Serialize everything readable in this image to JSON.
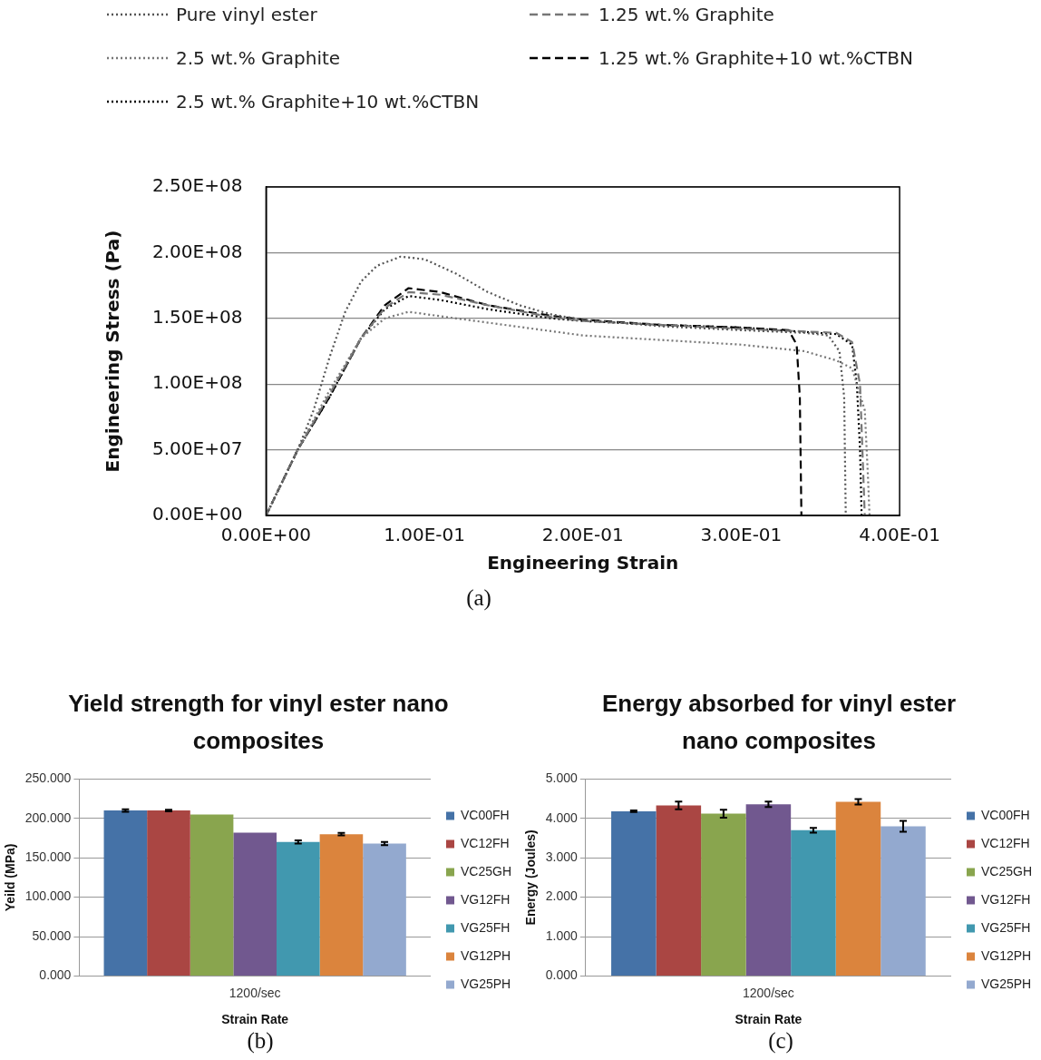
{
  "chart_data": [
    {
      "type": "line",
      "xlabel": "Engineering Strain",
      "ylabel": "Engineering Stress (Pa)",
      "annotations": [
        "(a)"
      ],
      "legend": "top",
      "grid": "y",
      "xlim": [
        0,
        0.4
      ],
      "xticks": [
        {
          "value": 0,
          "label": "0.00E+00"
        },
        {
          "value": 0.1,
          "label": "1.00E-01"
        },
        {
          "value": 0.2,
          "label": "2.00E-01"
        },
        {
          "value": 0.3,
          "label": "3.00E-01"
        },
        {
          "value": 0.4,
          "label": "4.00E-01"
        }
      ],
      "ylim": [
        0,
        250000000
      ],
      "yticks": [
        {
          "value": 0,
          "label": "0.00E+00"
        },
        {
          "value": 50000000,
          "label": "5.00E+07"
        },
        {
          "value": 100000000,
          "label": "1.00E+08"
        },
        {
          "value": 150000000,
          "label": "1.50E+08"
        },
        {
          "value": 200000000,
          "label": "2.00E+08"
        },
        {
          "value": 250000000,
          "label": "2.50E+08"
        }
      ],
      "series": [
        {
          "name": "Pure vinyl ester",
          "color": "#555555",
          "line_style": "dotted",
          "x": [
            0,
            0.01,
            0.02,
            0.03,
            0.04,
            0.05,
            0.06,
            0.07,
            0.085,
            0.1,
            0.12,
            0.14,
            0.16,
            0.18,
            0.2,
            0.25,
            0.3,
            0.34,
            0.355,
            0.362,
            0.365,
            0.366
          ],
          "values": [
            0,
            25000000,
            50000000,
            80000000,
            120000000,
            155000000,
            178000000,
            190000000,
            197000000,
            195000000,
            184000000,
            170000000,
            160000000,
            153000000,
            149000000,
            144000000,
            141000000,
            139000000,
            137000000,
            125000000,
            90000000,
            0
          ]
        },
        {
          "name": "1.25 wt.% Graphite",
          "color": "#777777",
          "line_style": "dashed",
          "x": [
            0,
            0.02,
            0.04,
            0.06,
            0.075,
            0.09,
            0.11,
            0.14,
            0.18,
            0.2,
            0.25,
            0.3,
            0.36,
            0.37,
            0.375,
            0.378
          ],
          "values": [
            0,
            50000000,
            92000000,
            135000000,
            158000000,
            170000000,
            168000000,
            160000000,
            151000000,
            148000000,
            145000000,
            142000000,
            139000000,
            132000000,
            100000000,
            0
          ]
        },
        {
          "name": "2.5 wt.% Graphite",
          "color": "#777777",
          "line_style": "dotted",
          "x": [
            0,
            0.02,
            0.04,
            0.06,
            0.075,
            0.09,
            0.12,
            0.2,
            0.3,
            0.34,
            0.36,
            0.37,
            0.378,
            0.38,
            0.381
          ],
          "values": [
            0,
            50000000,
            95000000,
            135000000,
            150000000,
            155000000,
            150000000,
            137000000,
            130000000,
            125000000,
            118000000,
            112000000,
            80000000,
            30000000,
            0
          ]
        },
        {
          "name": "1.25 wt.% Graphite+10 wt.%CTBN",
          "color": "#000000",
          "line_style": "dashed",
          "x": [
            0,
            0.02,
            0.04,
            0.06,
            0.075,
            0.09,
            0.11,
            0.14,
            0.18,
            0.2,
            0.25,
            0.3,
            0.33,
            0.335,
            0.337,
            0.338
          ],
          "values": [
            0,
            50000000,
            90000000,
            135000000,
            160000000,
            173000000,
            170000000,
            160000000,
            152000000,
            149000000,
            145000000,
            143000000,
            141000000,
            130000000,
            90000000,
            0
          ]
        },
        {
          "name": "2.5 wt.% Graphite+10 wt.%CTBN",
          "color": "#000000",
          "line_style": "dotted",
          "x": [
            0,
            0.02,
            0.04,
            0.06,
            0.075,
            0.09,
            0.11,
            0.14,
            0.18,
            0.2,
            0.25,
            0.3,
            0.36,
            0.37,
            0.373,
            0.375,
            0.376
          ],
          "values": [
            0,
            50000000,
            90000000,
            135000000,
            157000000,
            167000000,
            164000000,
            157000000,
            150000000,
            148000000,
            145000000,
            143000000,
            138000000,
            130000000,
            100000000,
            50000000,
            0
          ]
        }
      ]
    },
    {
      "type": "bar",
      "title": "Yield strength for vinyl ester nano composites",
      "xlabel": "Strain Rate",
      "ylabel": "Yeild (MPa)",
      "annotations": [
        "(b)"
      ],
      "legend": "right",
      "grid": "y",
      "categories": [
        "1200/sec"
      ],
      "ylim": [
        0,
        250
      ],
      "yticks": [
        {
          "value": 0,
          "label": "0.000"
        },
        {
          "value": 50,
          "label": "50.000"
        },
        {
          "value": 100,
          "label": "100.000"
        },
        {
          "value": 150,
          "label": "150.000"
        },
        {
          "value": 200,
          "label": "200.000"
        },
        {
          "value": 250,
          "label": "250.000"
        }
      ],
      "series": [
        {
          "name": "VC00FH",
          "color": "#4572a7",
          "values": [
            210
          ],
          "errors": [
            1.5
          ]
        },
        {
          "name": "VC12FH",
          "color": "#aa4643",
          "values": [
            210
          ],
          "errors": [
            1
          ]
        },
        {
          "name": "VC25GH",
          "color": "#89a54e",
          "values": [
            205
          ],
          "errors": [
            null
          ]
        },
        {
          "name": "VG12FH",
          "color": "#71588f",
          "values": [
            182
          ],
          "errors": [
            null
          ]
        },
        {
          "name": "VG25FH",
          "color": "#4198af",
          "values": [
            170
          ],
          "errors": [
            2
          ]
        },
        {
          "name": "VG12PH",
          "color": "#db843d",
          "values": [
            180
          ],
          "errors": [
            1.5
          ]
        },
        {
          "name": "VG25PH",
          "color": "#93a9cf",
          "values": [
            168
          ],
          "errors": [
            2
          ]
        }
      ]
    },
    {
      "type": "bar",
      "title": "Energy absorbed for vinyl ester nano composites",
      "xlabel": "Strain Rate",
      "ylabel": "Energy (Joules)",
      "annotations": [
        "(c)"
      ],
      "legend": "right",
      "grid": "y",
      "categories": [
        "1200/sec"
      ],
      "ylim": [
        0,
        5
      ],
      "yticks": [
        {
          "value": 0,
          "label": "0.000"
        },
        {
          "value": 1,
          "label": "1.000"
        },
        {
          "value": 2,
          "label": "2.000"
        },
        {
          "value": 3,
          "label": "3.000"
        },
        {
          "value": 4,
          "label": "4.000"
        },
        {
          "value": 5,
          "label": "5.000"
        }
      ],
      "series": [
        {
          "name": "VC00FH",
          "color": "#4572a7",
          "values": [
            4.18
          ],
          "errors": [
            0.02
          ]
        },
        {
          "name": "VC12FH",
          "color": "#aa4643",
          "values": [
            4.33
          ],
          "errors": [
            0.1
          ]
        },
        {
          "name": "VC25GH",
          "color": "#89a54e",
          "values": [
            4.12
          ],
          "errors": [
            0.1
          ]
        },
        {
          "name": "VG12FH",
          "color": "#71588f",
          "values": [
            4.36
          ],
          "errors": [
            0.07
          ]
        },
        {
          "name": "VG25FH",
          "color": "#4198af",
          "values": [
            3.7
          ],
          "errors": [
            0.06
          ]
        },
        {
          "name": "VG12PH",
          "color": "#db843d",
          "values": [
            4.42
          ],
          "errors": [
            0.07
          ]
        },
        {
          "name": "VG25PH",
          "color": "#93a9cf",
          "values": [
            3.8
          ],
          "errors": [
            0.14
          ]
        }
      ]
    }
  ]
}
